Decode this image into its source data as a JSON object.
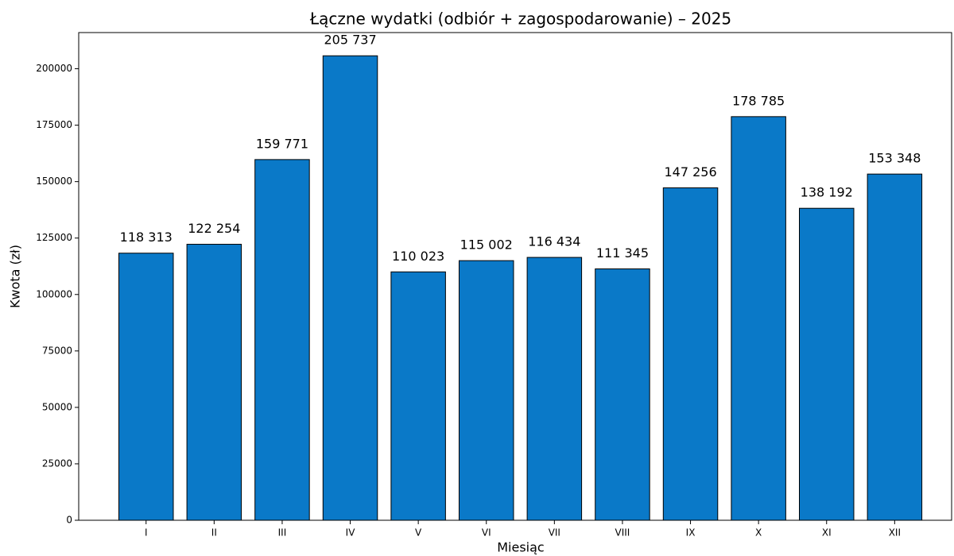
{
  "chart_data": {
    "type": "bar",
    "title": "Łączne wydatki (odbiór + zagospodarowanie) – 2025",
    "xlabel": "Miesiąc",
    "ylabel": "Kwota (zł)",
    "categories": [
      "I",
      "II",
      "III",
      "IV",
      "V",
      "VI",
      "VII",
      "VIII",
      "IX",
      "X",
      "XI",
      "XII"
    ],
    "values": [
      118313,
      122254,
      159771,
      205737,
      110023,
      115002,
      116434,
      111345,
      147256,
      178785,
      138192,
      153348
    ],
    "value_labels": [
      "118 313",
      "122 254",
      "159 771",
      "205 737",
      "110 023",
      "115 002",
      "116 434",
      "111 345",
      "147 256",
      "178 785",
      "138 192",
      "153 348"
    ],
    "color": "#0a79c8",
    "edgecolor": "#000000",
    "ylim": [
      0,
      216024
    ],
    "yticks": [
      0,
      25000,
      50000,
      75000,
      100000,
      125000,
      150000,
      175000,
      200000
    ],
    "grid": false
  }
}
